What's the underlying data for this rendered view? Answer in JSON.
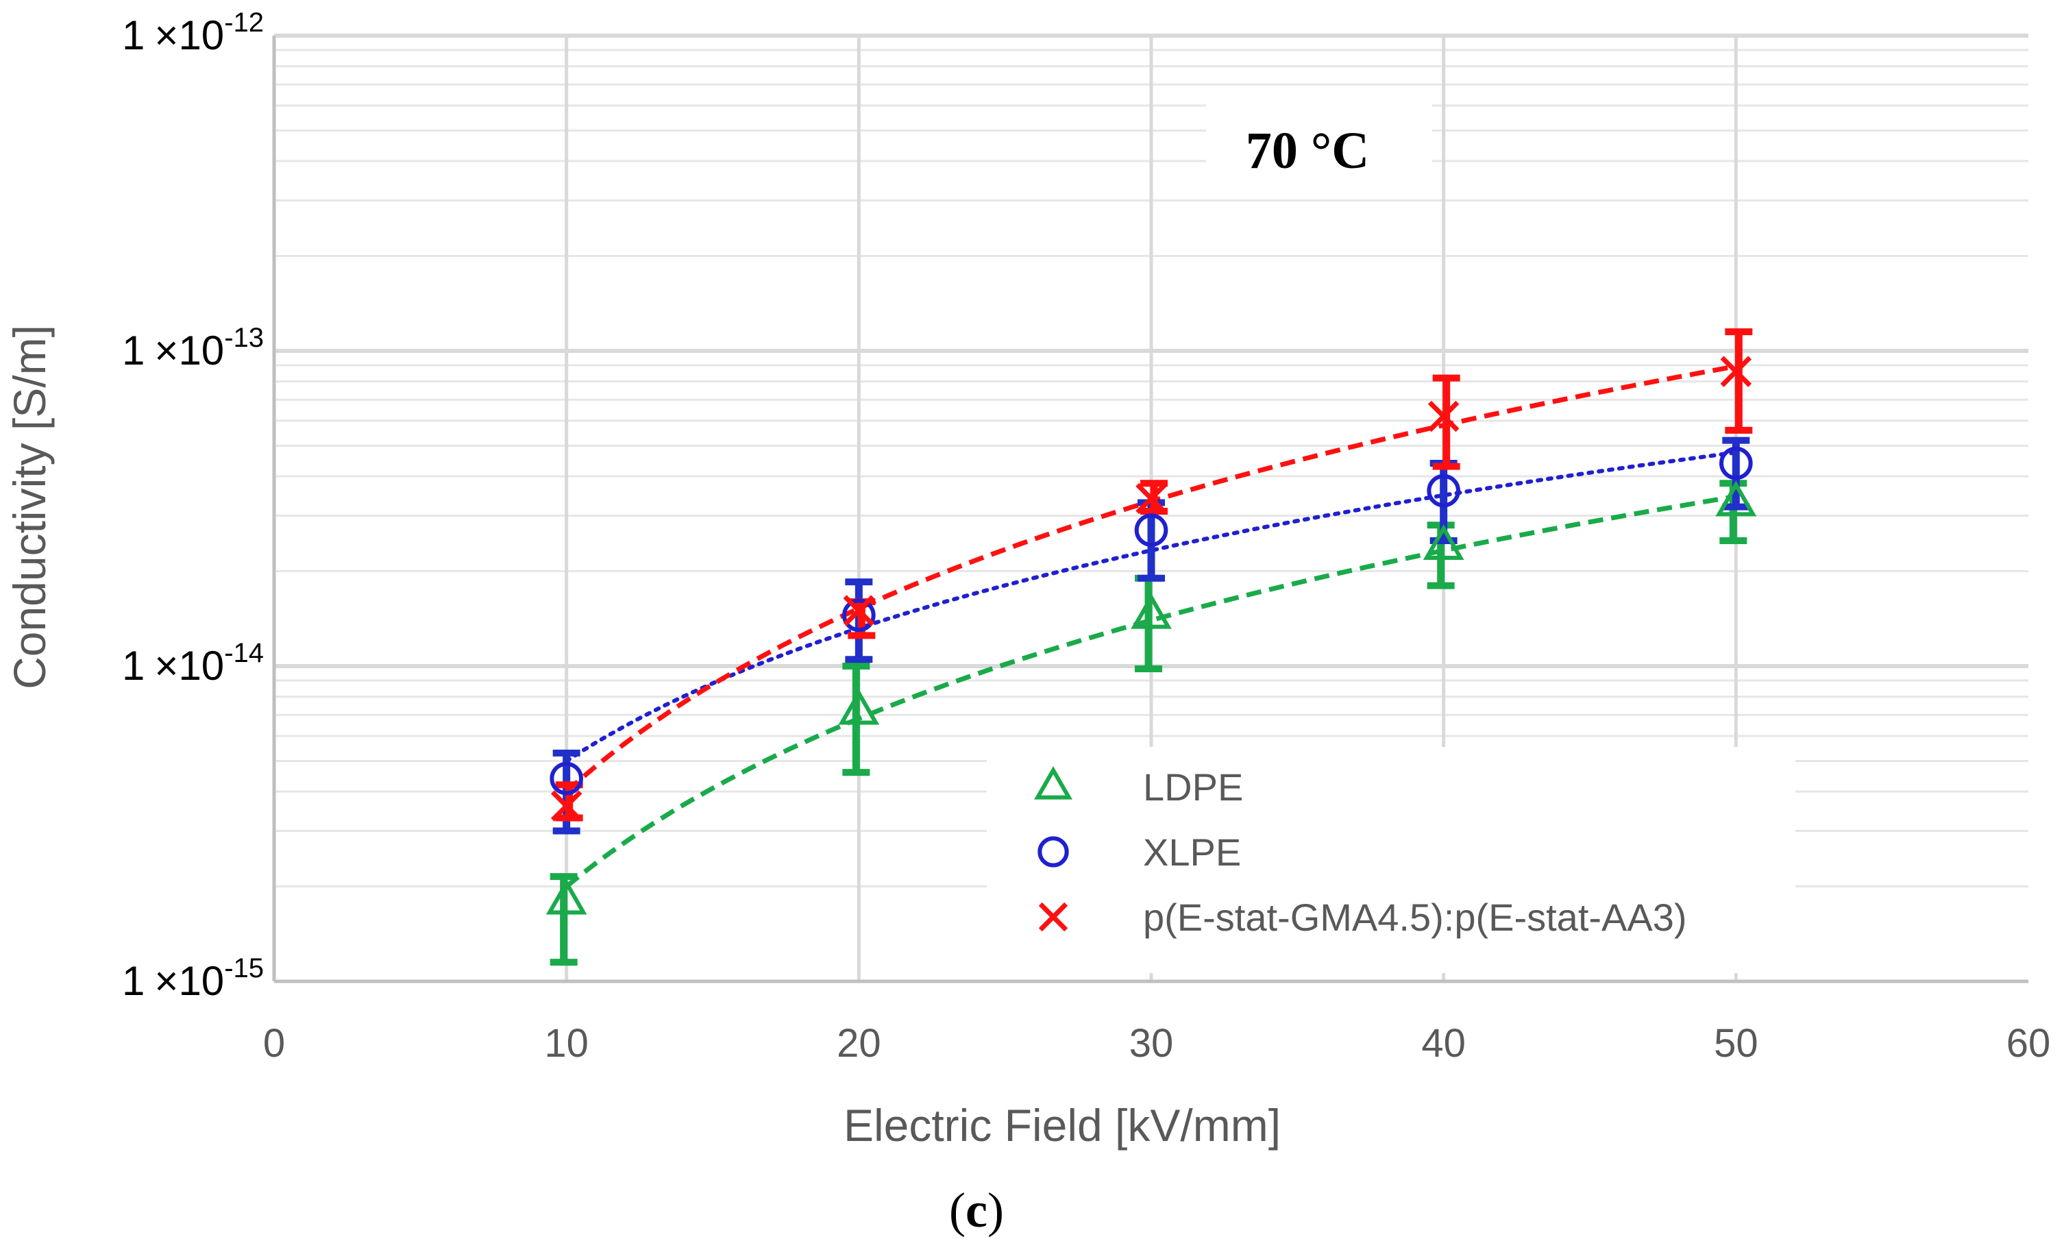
{
  "chart_data": {
    "type": "scatter",
    "title": "",
    "annotation": "70 °C",
    "caption": {
      "open": "(",
      "label": "c",
      "close": ")"
    },
    "xlabel": "Electric Field [kV/mm]",
    "ylabel": "Conductivity [S/m]",
    "xlim": [
      0,
      60
    ],
    "ylim": [
      1e-15,
      1e-12
    ],
    "yscale": "log",
    "grid": true,
    "legend_position": "center-bottom",
    "x_ticks": [
      "0",
      "10",
      "20",
      "30",
      "40",
      "50",
      "60"
    ],
    "y_ticks": [
      {
        "value": 1e-15,
        "mantissa": "1",
        "times": "×",
        "base": "10",
        "exponent": "-15"
      },
      {
        "value": 1e-14,
        "mantissa": "1",
        "times": "×",
        "base": "10",
        "exponent": "-14"
      },
      {
        "value": 1e-13,
        "mantissa": "1",
        "times": "×",
        "base": "10",
        "exponent": "-13"
      },
      {
        "value": 1e-12,
        "mantissa": "1",
        "times": "×",
        "base": "10",
        "exponent": "-12"
      }
    ],
    "series": [
      {
        "name": "LDPE",
        "marker": "triangle",
        "color": "#1aaa4a",
        "error_color": "#1aaa4a",
        "trend_style": "dashed",
        "x": [
          10,
          20,
          30,
          40,
          50
        ],
        "values": [
          1.8e-15,
          7.2e-15,
          1.45e-14,
          2.4e-14,
          3.3e-14
        ],
        "err_low": [
          1.15e-15,
          4.6e-15,
          9.8e-15,
          1.8e-14,
          2.5e-14
        ],
        "err_high": [
          2.15e-15,
          1e-14,
          1.9e-14,
          2.8e-14,
          3.8e-14
        ],
        "trend": {
          "a": 2e-15,
          "exponent": 1.77
        }
      },
      {
        "name": "XLPE",
        "marker": "circle",
        "color": "#2020d0",
        "error_color": "#2030c8",
        "trend_style": "dotted",
        "x": [
          10,
          20,
          30,
          40,
          50
        ],
        "values": [
          4.4e-15,
          1.45e-14,
          2.7e-14,
          3.6e-14,
          4.4e-14
        ],
        "err_low": [
          3e-15,
          1.05e-14,
          1.9e-14,
          2.5e-14,
          3.2e-14
        ],
        "err_high": [
          5.3e-15,
          1.85e-14,
          3.3e-14,
          4.4e-14,
          5.2e-14
        ],
        "trend": {
          "a": 5e-15,
          "exponent": 1.4
        }
      },
      {
        "name": "p(E-stat-GMA4.5):p(E-stat-AA3)",
        "marker": "x",
        "color": "#ff1010",
        "error_color": "#ff1010",
        "trend_style": "dashed",
        "x": [
          10,
          20,
          30,
          40,
          50
        ],
        "values": [
          3.6e-15,
          1.5e-14,
          3.4e-14,
          6.2e-14,
          8.6e-14
        ],
        "err_low": [
          3.3e-15,
          1.25e-14,
          3.1e-14,
          4.3e-14,
          5.6e-14
        ],
        "err_high": [
          4.2e-15,
          1.6e-14,
          3.8e-14,
          8.2e-14,
          1.15e-13
        ],
        "trend": {
          "a": 4e-15,
          "exponent": 1.93
        }
      }
    ]
  }
}
